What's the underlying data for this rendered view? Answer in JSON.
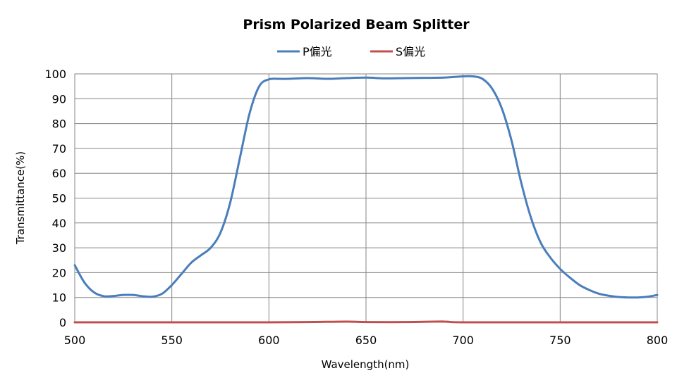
{
  "chart_data": {
    "type": "line",
    "title": "Prism Polarized Beam Splitter",
    "xlabel": "Wavelength(nm)",
    "ylabel": "Transmittance(%)",
    "xlim": [
      500,
      800
    ],
    "ylim": [
      0,
      100
    ],
    "x_ticks": [
      500,
      550,
      600,
      650,
      700,
      750,
      800
    ],
    "y_ticks": [
      0,
      10,
      20,
      30,
      40,
      50,
      60,
      70,
      80,
      90,
      100
    ],
    "grid": true,
    "legend_position": "top",
    "series": [
      {
        "name": "P偏光",
        "color": "#4a7ebb",
        "x": [
          500,
          505,
          510,
          515,
          520,
          525,
          530,
          535,
          540,
          545,
          550,
          555,
          560,
          565,
          570,
          575,
          580,
          585,
          590,
          595,
          600,
          605,
          610,
          620,
          630,
          640,
          650,
          660,
          670,
          680,
          690,
          700,
          705,
          710,
          715,
          720,
          725,
          730,
          735,
          740,
          745,
          750,
          755,
          760,
          765,
          770,
          775,
          780,
          785,
          790,
          795,
          800
        ],
        "y": [
          23,
          16,
          12,
          10.5,
          10.6,
          11,
          11,
          10.5,
          10.3,
          11.5,
          15,
          19.5,
          24,
          27,
          30,
          36,
          48,
          66,
          84,
          95,
          97.8,
          98,
          98,
          98.3,
          98,
          98.3,
          98.5,
          98.2,
          98.3,
          98.4,
          98.5,
          99,
          99,
          98,
          94,
          86,
          73,
          56,
          42,
          32,
          26,
          21.5,
          18,
          15,
          13,
          11.5,
          10.7,
          10.2,
          10,
          10,
          10.3,
          11
        ]
      },
      {
        "name": "S偏光",
        "color": "#c0504d",
        "x": [
          500,
          550,
          600,
          620,
          640,
          650,
          670,
          690,
          700,
          750,
          800
        ],
        "y": [
          0,
          0,
          0,
          0.1,
          0.3,
          0.1,
          0.1,
          0.3,
          0,
          0,
          0
        ]
      }
    ]
  }
}
